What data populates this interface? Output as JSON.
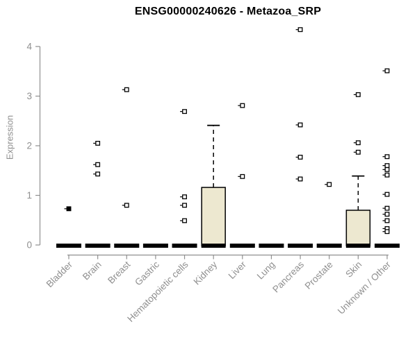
{
  "chart_data": {
    "type": "boxplot",
    "title": "ENSG00000240626 - Metazoa_SRP",
    "ylabel": "Expression",
    "ylim": [
      0,
      4
    ],
    "yticks": [
      0,
      1,
      2,
      3,
      4
    ],
    "grid": false,
    "legend": false,
    "background": "#ffffff",
    "box_fill_color": "#EDE8D0",
    "box_border_color": "#000000",
    "axis_color": "#8f8f8f",
    "median_color": "#000000",
    "categories": [
      "Bladder",
      "Brain",
      "Breast",
      "Gastric",
      "Hematopoietic cells",
      "Kidney",
      "Liver",
      "Lung",
      "Pancreas",
      "Prostate",
      "Skin",
      "Unknown / Other"
    ],
    "series": [
      {
        "name": "Bladder",
        "median": 0,
        "box": null,
        "whisker_high": 0,
        "outliers": [
          0.73
        ],
        "marker": "filled"
      },
      {
        "name": "Brain",
        "median": 0,
        "box": null,
        "whisker_high": 0,
        "outliers": [
          2.05,
          1.62,
          1.43
        ]
      },
      {
        "name": "Breast",
        "median": 0,
        "box": null,
        "whisker_high": 0,
        "outliers": [
          3.13,
          0.8
        ]
      },
      {
        "name": "Gastric",
        "median": 0,
        "box": null,
        "whisker_high": 0,
        "outliers": []
      },
      {
        "name": "Hematopoietic cells",
        "median": 0,
        "box": null,
        "whisker_high": 0,
        "outliers": [
          2.69,
          0.97,
          0.8,
          0.49
        ]
      },
      {
        "name": "Kidney",
        "median": 0,
        "box": [
          0,
          1.16
        ],
        "whisker_high": 2.41,
        "outliers": []
      },
      {
        "name": "Liver",
        "median": 0,
        "box": null,
        "whisker_high": 0,
        "outliers": [
          2.81,
          1.38
        ]
      },
      {
        "name": "Lung",
        "median": 0,
        "box": null,
        "whisker_high": 0,
        "outliers": []
      },
      {
        "name": "Pancreas",
        "median": 0,
        "box": null,
        "whisker_high": 0,
        "outliers": [
          4.34,
          2.42,
          1.77,
          1.33
        ]
      },
      {
        "name": "Prostate",
        "median": 0,
        "box": null,
        "whisker_high": 0,
        "outliers": [
          1.22
        ]
      },
      {
        "name": "Skin",
        "median": 0,
        "box": [
          0,
          0.7
        ],
        "whisker_high": 1.39,
        "outliers": [
          3.03,
          2.06,
          1.87
        ]
      },
      {
        "name": "Unknown / Other",
        "median": 0,
        "box": null,
        "whisker_high": 0,
        "outliers": [
          3.51,
          1.78,
          1.6,
          1.52,
          1.41,
          1.02,
          0.74,
          0.62,
          0.49,
          0.33,
          0.27
        ]
      }
    ]
  }
}
